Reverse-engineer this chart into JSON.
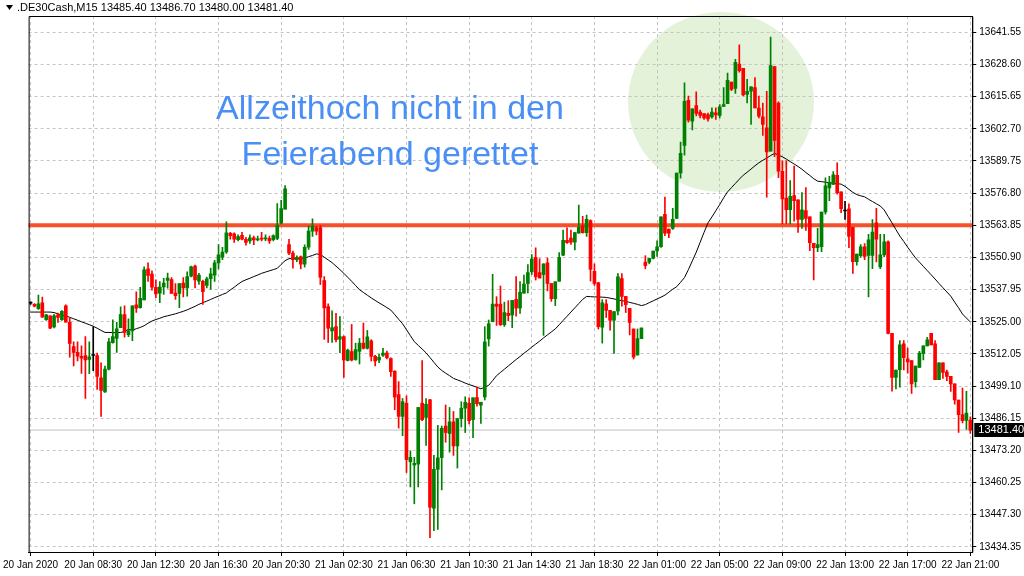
{
  "chart_data": {
    "type": "candlestick",
    "title": ".DE30Cash,M15  13485.40 13486.70 13480.00 13481.40",
    "annotations": [
      "Allzeithoch nicht in den Feierabend gerettet"
    ],
    "categories": [
      "20 Jan 2020",
      null,
      null,
      null,
      null,
      null,
      null,
      null,
      null,
      null,
      null,
      null,
      null,
      null,
      null,
      null,
      "20 Jan 08:30",
      null,
      null,
      null,
      null,
      null,
      null,
      null,
      null,
      null,
      null,
      null,
      null,
      null,
      null,
      null,
      "20 Jan 12:30",
      null,
      null,
      null,
      null,
      null,
      null,
      null,
      null,
      null,
      null,
      null,
      null,
      null,
      null,
      null,
      "20 Jan 16:30",
      null,
      null,
      null,
      null,
      null,
      null,
      null,
      null,
      null,
      null,
      null,
      null,
      null,
      null,
      null,
      "20 Jan 20:30",
      null,
      null,
      null,
      null,
      null,
      null,
      null,
      null,
      null,
      null,
      null,
      null,
      null,
      null,
      null,
      "21 Jan 02:30",
      null,
      null,
      null,
      null,
      null,
      null,
      null,
      null,
      null,
      null,
      null,
      null,
      null,
      null,
      null,
      "21 Jan 06:30",
      null,
      null,
      null,
      null,
      null,
      null,
      null,
      null,
      null,
      null,
      null,
      null,
      null,
      null,
      null,
      "21 Jan 10:30",
      null,
      null,
      null,
      null,
      null,
      null,
      null,
      null,
      null,
      null,
      null,
      null,
      null,
      null,
      null,
      "21 Jan 14:30",
      null,
      null,
      null,
      null,
      null,
      null,
      null,
      null,
      null,
      null,
      null,
      null,
      null,
      null,
      null,
      "21 Jan 18:30",
      null,
      null,
      null,
      null,
      null,
      null,
      null,
      null,
      null,
      null,
      null,
      null,
      null,
      null,
      null,
      "22 Jan 01:00",
      null,
      null,
      null,
      null,
      null,
      null,
      null,
      null,
      null,
      null,
      null,
      null,
      null,
      null,
      null,
      "22 Jan 05:00",
      null,
      null,
      null,
      null,
      null,
      null,
      null,
      null,
      null,
      null,
      null,
      null,
      null,
      null,
      null,
      "22 Jan 09:00",
      null,
      null,
      null,
      null,
      null,
      null,
      null,
      null,
      null,
      null,
      null,
      null,
      null,
      null,
      null,
      "22 Jan 13:00",
      null,
      null,
      null,
      null,
      null,
      null,
      null,
      null,
      null,
      null,
      null,
      null,
      null,
      null,
      null,
      "22 Jan 17:00",
      null,
      null,
      null,
      null,
      null,
      null,
      null,
      null,
      null,
      null,
      null,
      null,
      null,
      null,
      null,
      "22 Jan 21:00"
    ],
    "ohlc": [
      [
        13532.5,
        13533,
        13532,
        13532.5
      ],
      [
        13532,
        13532.3,
        13531,
        13531.3
      ],
      [
        13530.3,
        13535.7,
        13530,
        13532.2
      ],
      [
        13532.6,
        13534.9,
        13526.8,
        13526.8
      ],
      [
        13525.8,
        13528,
        13525.5,
        13527.8
      ],
      [
        13527.4,
        13527.4,
        13522.2,
        13522.4
      ],
      [
        13522.9,
        13528,
        13522.5,
        13527.4
      ],
      [
        13527.8,
        13528.5,
        13524.7,
        13526.7
      ],
      [
        13525.8,
        13529.5,
        13525.5,
        13529.2
      ],
      [
        13531.4,
        13531.8,
        13524.8,
        13524.8
      ],
      [
        13524.8,
        13526.5,
        13510.7,
        13516.3
      ],
      [
        13515,
        13516.9,
        13507.2,
        13512.7
      ],
      [
        13512.7,
        13516.9,
        13509.2,
        13511.1
      ],
      [
        13511.1,
        13515.3,
        13504.2,
        13510.3
      ],
      [
        13511.4,
        13519,
        13494.1,
        13509.6
      ],
      [
        13509.8,
        13516.9,
        13504.1,
        13510.9
      ],
      [
        13511.4,
        13523,
        13505.3,
        13511.4
      ],
      [
        13511.4,
        13512.4,
        13497.8,
        13503
      ],
      [
        13502.4,
        13508.5,
        13486.9,
        13497.4
      ],
      [
        13496.7,
        13507.2,
        13496.5,
        13505.9
      ],
      [
        13505.9,
        13518.3,
        13505.6,
        13516.9
      ],
      [
        13516.6,
        13525.8,
        13516.4,
        13519
      ],
      [
        13518.3,
        13524.8,
        13512.7,
        13522.2
      ],
      [
        13522.6,
        13531,
        13522.6,
        13527.9
      ],
      [
        13527.9,
        13531.4,
        13518.8,
        13520.7
      ],
      [
        13519.8,
        13526.2,
        13519,
        13521.3
      ],
      [
        13521.3,
        13531.4,
        13517.4,
        13531.4
      ],
      [
        13531.8,
        13537,
        13528.8,
        13530.5
      ],
      [
        13530.7,
        13538.9,
        13530.5,
        13534.4
      ],
      [
        13533.8,
        13547.1,
        13533.8,
        13545.9
      ],
      [
        13546.3,
        13548.7,
        13541.2,
        13543.7
      ],
      [
        13544.2,
        13545.5,
        13537.7,
        13538.9
      ],
      [
        13538.9,
        13541.9,
        13534.7,
        13536.2
      ],
      [
        13536.5,
        13541.2,
        13532.7,
        13539
      ],
      [
        13539,
        13542.5,
        13536,
        13540.6
      ],
      [
        13541.6,
        13544.6,
        13538.5,
        13542.6
      ],
      [
        13542,
        13542.8,
        13536.4,
        13536.4
      ],
      [
        13536.5,
        13540.4,
        13534,
        13535.5
      ],
      [
        13536.4,
        13540.4,
        13530.7,
        13540.4
      ],
      [
        13540.6,
        13542.8,
        13535,
        13538.6
      ],
      [
        13538.6,
        13545.1,
        13535.3,
        13543.2
      ],
      [
        13543.4,
        13547.4,
        13543.1,
        13547.1
      ],
      [
        13547.4,
        13547.8,
        13538.6,
        13541.8
      ],
      [
        13541.3,
        13544.5,
        13540,
        13543.8
      ],
      [
        13541.3,
        13541.8,
        13532,
        13537.1
      ],
      [
        13539.6,
        13543,
        13538.6,
        13542.3
      ],
      [
        13542.3,
        13546.6,
        13538,
        13544.3
      ],
      [
        13543.8,
        13549.7,
        13541.2,
        13548.7
      ],
      [
        13548.7,
        13556.1,
        13546.3,
        13551.9
      ],
      [
        13551,
        13555,
        13550,
        13553.1
      ],
      [
        13553.1,
        13565.2,
        13552.5,
        13560.8
      ],
      [
        13560.6,
        13561,
        13558.2,
        13559.7
      ],
      [
        13560.4,
        13560.8,
        13556.9,
        13558.2
      ],
      [
        13558,
        13560,
        13557.5,
        13559.3
      ],
      [
        13559.8,
        13561,
        13557.9,
        13558.2
      ],
      [
        13558.2,
        13559,
        13555.8,
        13556.9
      ],
      [
        13557.5,
        13560,
        13556.5,
        13558.8
      ],
      [
        13558.8,
        13559.5,
        13556,
        13557.9
      ],
      [
        13557.9,
        13559.5,
        13557.5,
        13558.4
      ],
      [
        13558.7,
        13561,
        13557.5,
        13558.2
      ],
      [
        13558.4,
        13560,
        13557.6,
        13558.6
      ],
      [
        13558.6,
        13559.5,
        13556.5,
        13557.5
      ],
      [
        13558,
        13560,
        13557.5,
        13559.7
      ],
      [
        13558.6,
        13572.6,
        13558,
        13563.9
      ],
      [
        13564.7,
        13573.9,
        13564.4,
        13570.6
      ],
      [
        13570.3,
        13579.8,
        13570.3,
        13578.5
      ],
      [
        13556.1,
        13558.2,
        13552,
        13552.6
      ],
      [
        13552.6,
        13553.5,
        13546.6,
        13550
      ],
      [
        13550,
        13551.5,
        13549.2,
        13550.9
      ],
      [
        13551.2,
        13551.5,
        13546.3,
        13548.2
      ],
      [
        13548.2,
        13556,
        13547,
        13555
      ],
      [
        13555,
        13563.5,
        13554.1,
        13561.5
      ],
      [
        13561.5,
        13566.4,
        13559.4,
        13563.5
      ],
      [
        13562.9,
        13563.5,
        13560,
        13561.5
      ],
      [
        13562.9,
        13563.8,
        13540,
        13542.9
      ],
      [
        13541.6,
        13543.2,
        13517.9,
        13530.6
      ],
      [
        13531.1,
        13532.2,
        13516.7,
        13522.4
      ],
      [
        13521.3,
        13529.4,
        13516.7,
        13522.6
      ],
      [
        13523,
        13528.4,
        13516.9,
        13517.8
      ],
      [
        13518,
        13527.1,
        13512.6,
        13519
      ],
      [
        13519,
        13519.3,
        13502.6,
        13509.6
      ],
      [
        13509.4,
        13514,
        13509.2,
        13513.6
      ],
      [
        13513,
        13523.9,
        13509.2,
        13509.6
      ],
      [
        13509.8,
        13516.4,
        13509.5,
        13513.8
      ],
      [
        13513.1,
        13518.3,
        13508,
        13516.4
      ],
      [
        13516.4,
        13524.5,
        13514,
        13514.3
      ],
      [
        13514.3,
        13521.5,
        13514,
        13518.9
      ],
      [
        13517.3,
        13517.8,
        13509.2,
        13511.1
      ],
      [
        13511.1,
        13511.5,
        13507.2,
        13509.2
      ],
      [
        13509.6,
        13512,
        13508.5,
        13510.7
      ],
      [
        13511.5,
        13514.3,
        13511,
        13512.4
      ],
      [
        13512.4,
        13513.2,
        13510,
        13510.5
      ],
      [
        13510.2,
        13510.5,
        13503,
        13504.9
      ],
      [
        13505.1,
        13505.3,
        13489.6,
        13494.7
      ],
      [
        13495.7,
        13500.9,
        13482.2,
        13486.9
      ],
      [
        13486.9,
        13494.1,
        13479.1,
        13492.8
      ],
      [
        13492.2,
        13495.2,
        13464.3,
        13469.5
      ],
      [
        13468.6,
        13473,
        13458.5,
        13470.4
      ],
      [
        13467.3,
        13470.4,
        13451.7,
        13468
      ],
      [
        13467.7,
        13490.5,
        13458.5,
        13490.5
      ],
      [
        13492.2,
        13509.4,
        13485.2,
        13485.6
      ],
      [
        13486.5,
        13494.1,
        13475.2,
        13491.8
      ],
      [
        13493.6,
        13493.8,
        13438.1,
        13450.3
      ],
      [
        13449.9,
        13471.2,
        13440.9,
        13465.6
      ],
      [
        13465.6,
        13483.3,
        13441.4,
        13470.2
      ],
      [
        13470.3,
        13483,
        13457.3,
        13482.1
      ],
      [
        13483,
        13491.5,
        13476.5,
        13480.4
      ],
      [
        13480,
        13490.5,
        13472.5,
        13484.7
      ],
      [
        13484.7,
        13488.9,
        13471.2,
        13475
      ],
      [
        13475,
        13486,
        13466.1,
        13486
      ],
      [
        13486,
        13492.8,
        13482.6,
        13490.2
      ],
      [
        13490.2,
        13494.8,
        13480.4,
        13492.6
      ],
      [
        13492.2,
        13494.4,
        13483.9,
        13485.2
      ],
      [
        13485.6,
        13494.4,
        13478.3,
        13494.4
      ],
      [
        13494.5,
        13498.8,
        13491,
        13492
      ],
      [
        13491.4,
        13492.6,
        13484.1,
        13492.6
      ],
      [
        13494.7,
        13523,
        13493.5,
        13516.9
      ],
      [
        13518.1,
        13525.7,
        13515.2,
        13524.2
      ],
      [
        13525,
        13544.1,
        13525,
        13532.1
      ],
      [
        13532.1,
        13535.1,
        13523.5,
        13531.2
      ],
      [
        13532.1,
        13539.4,
        13523.5,
        13523.8
      ],
      [
        13523.8,
        13532.9,
        13523.1,
        13528.7
      ],
      [
        13528.4,
        13533.5,
        13525.4,
        13527.5
      ],
      [
        13527.7,
        13533.6,
        13522.6,
        13533.6
      ],
      [
        13534,
        13543.2,
        13527.2,
        13530.5
      ],
      [
        13530.5,
        13541.2,
        13528.4,
        13536.9
      ],
      [
        13536.5,
        13543.8,
        13536.5,
        13540.2
      ],
      [
        13540.4,
        13548,
        13536.6,
        13544.8
      ],
      [
        13545.1,
        13552,
        13544,
        13550.3
      ],
      [
        13550.9,
        13554.8,
        13541.8,
        13543.1
      ],
      [
        13544.8,
        13550.4,
        13542.6,
        13542.6
      ],
      [
        13544,
        13548.3,
        13519.5,
        13548.3
      ],
      [
        13548.7,
        13550.7,
        13537.4,
        13540.4
      ],
      [
        13540.4,
        13540.4,
        13533.2,
        13534.3
      ],
      [
        13534.3,
        13541.1,
        13531.5,
        13541.1
      ],
      [
        13541.3,
        13552.9,
        13541.3,
        13550.9
      ],
      [
        13551.8,
        13561.9,
        13551.6,
        13557.8
      ],
      [
        13557.8,
        13562.8,
        13556.5,
        13556.8
      ],
      [
        13558.7,
        13561.9,
        13556.1,
        13557
      ],
      [
        13557,
        13560.9,
        13553.9,
        13560.9
      ],
      [
        13560.7,
        13572,
        13560.7,
        13563
      ],
      [
        13563.6,
        13567.4,
        13560.7,
        13560.9
      ],
      [
        13560.9,
        13567.9,
        13559.4,
        13566.2
      ],
      [
        13565.7,
        13566,
        13541.4,
        13546.1
      ],
      [
        13545.3,
        13548.3,
        13539.6,
        13540.4
      ],
      [
        13540.7,
        13540.9,
        13522.1,
        13523
      ],
      [
        13522.8,
        13533.9,
        13516.4,
        13532.6
      ],
      [
        13532.2,
        13533.9,
        13526.7,
        13529.6
      ],
      [
        13529.6,
        13529.6,
        13521.6,
        13525.6
      ],
      [
        13525.6,
        13529.1,
        13512.3,
        13529.1
      ],
      [
        13529.3,
        13544.4,
        13527.8,
        13543.1
      ],
      [
        13542.4,
        13544.4,
        13531.3,
        13535.2
      ],
      [
        13535.2,
        13535.2,
        13528.7,
        13531.9
      ],
      [
        13530.4,
        13530.4,
        13519.7,
        13524.7
      ],
      [
        13522.1,
        13522.1,
        13510,
        13510.8
      ],
      [
        13511.6,
        13522.1,
        13511.6,
        13518.2
      ],
      [
        13518.2,
        13522.5,
        13518.2,
        13522.5
      ],
      [
        13549,
        13551.6,
        13546.3,
        13547.6
      ],
      [
        13549,
        13550.5,
        13548.3,
        13550.5
      ],
      [
        13550.5,
        13553.5,
        13550.3,
        13553.5
      ],
      [
        13553.5,
        13557.6,
        13551.3,
        13555.2
      ],
      [
        13555.2,
        13567.2,
        13554.9,
        13567.2
      ],
      [
        13568.3,
        13575.2,
        13559.7,
        13560.7
      ],
      [
        13562.3,
        13562.3,
        13558.9,
        13560.7
      ],
      [
        13562.6,
        13570.7,
        13562.2,
        13566.2
      ],
      [
        13566.6,
        13584.9,
        13566.6,
        13584.9
      ],
      [
        13584.9,
        13597.3,
        13582.8,
        13592.8
      ],
      [
        13596,
        13621.2,
        13592.1,
        13613.7
      ],
      [
        13614.1,
        13615.9,
        13605.4,
        13606.2
      ],
      [
        13605.8,
        13610.7,
        13602.2,
        13610.7
      ],
      [
        13612,
        13617.6,
        13607.9,
        13608.9
      ],
      [
        13609.4,
        13610.2,
        13607.1,
        13608.1
      ],
      [
        13608.8,
        13608.8,
        13606.5,
        13607.1
      ],
      [
        13608.4,
        13609,
        13605.8,
        13606.7
      ],
      [
        13607.5,
        13611.1,
        13607,
        13609.4
      ],
      [
        13609.1,
        13611.1,
        13606.5,
        13608.3
      ],
      [
        13608.1,
        13612.4,
        13607.1,
        13611.5
      ],
      [
        13611.7,
        13619.3,
        13611.7,
        13612.4
      ],
      [
        13612.8,
        13625.1,
        13612.8,
        13622.2
      ],
      [
        13621.5,
        13621.5,
        13618,
        13618.5
      ],
      [
        13618.9,
        13630.7,
        13616.9,
        13629.4
      ],
      [
        13628.7,
        13636.5,
        13625.5,
        13626.1
      ],
      [
        13627,
        13627,
        13615.9,
        13616.3
      ],
      [
        13616.5,
        13622.6,
        13613.1,
        13617.8
      ],
      [
        13617.8,
        13619.6,
        13604.4,
        13619.6
      ],
      [
        13619.3,
        13623.3,
        13611.1,
        13611.1
      ],
      [
        13611,
        13615.9,
        13607.1,
        13607.8
      ],
      [
        13607.5,
        13613,
        13600,
        13604.4
      ],
      [
        13603.1,
        13617.8,
        13575.2,
        13593.4
      ],
      [
        13593.7,
        13639.6,
        13593.7,
        13628.1
      ],
      [
        13627.7,
        13627.7,
        13591.5,
        13598
      ],
      [
        13613,
        13613.5,
        13583,
        13585.6
      ],
      [
        13585.6,
        13589.8,
        13564.4,
        13574.5
      ],
      [
        13574.8,
        13589.8,
        13564.4,
        13570.1
      ],
      [
        13570.1,
        13581.8,
        13564.4,
        13575.5
      ],
      [
        13575.8,
        13587.7,
        13565.5,
        13573.7
      ],
      [
        13574.1,
        13574.1,
        13561,
        13566.2
      ],
      [
        13566.2,
        13577,
        13562.6,
        13570.1
      ],
      [
        13569.8,
        13579,
        13561.8,
        13566.6
      ],
      [
        13567.2,
        13567.2,
        13553.6,
        13556.8
      ],
      [
        13556.6,
        13556.6,
        13541.8,
        13554.8
      ],
      [
        13554.8,
        13562.6,
        13553.2,
        13556.1
      ],
      [
        13555.2,
        13569.2,
        13553.2,
        13569.2
      ],
      [
        13569.2,
        13582.9,
        13568.3,
        13579.7
      ],
      [
        13578.9,
        13583.5,
        13573.7,
        13581
      ],
      [
        13580.3,
        13585.5,
        13580.3,
        13584.2
      ],
      [
        13584,
        13589,
        13576.4,
        13577
      ],
      [
        13577.3,
        13577.3,
        13568.9,
        13570.5
      ],
      [
        13569.6,
        13573.5,
        13566.2,
        13569.6
      ],
      [
        13570.5,
        13572.5,
        13554.8,
        13559.4
      ],
      [
        13563,
        13563,
        13544.5,
        13549.2
      ],
      [
        13549.2,
        13552.2,
        13547.8,
        13552.2
      ],
      [
        13551.6,
        13556.1,
        13550.9,
        13555.2
      ],
      [
        13555.2,
        13556.5,
        13550,
        13551.3
      ],
      [
        13551.7,
        13560.2,
        13535,
        13558
      ],
      [
        13551.7,
        13566.1,
        13546.4,
        13561.1
      ],
      [
        13564.8,
        13570.7,
        13549.1,
        13558.2
      ],
      [
        13547.1,
        13560.2,
        13546.4,
        13551.9
      ],
      [
        13551.9,
        13560.2,
        13551.2,
        13557.2
      ],
      [
        13557.2,
        13557.6,
        13520.1,
        13520.3
      ],
      [
        13520.3,
        13520.3,
        13497.1,
        13502.6
      ],
      [
        13502.6,
        13505.5,
        13498,
        13505.5
      ],
      [
        13505.7,
        13517.4,
        13498.7,
        13515.7
      ],
      [
        13516.1,
        13517.4,
        13505.6,
        13510.5
      ],
      [
        13510.1,
        13514.4,
        13504.3,
        13508.8
      ],
      [
        13509.4,
        13509.4,
        13496.1,
        13500
      ],
      [
        13500.9,
        13507.2,
        13498.7,
        13507.2
      ],
      [
        13506.6,
        13513.1,
        13506.6,
        13512.4
      ],
      [
        13512.2,
        13515.3,
        13509.6,
        13515.3
      ],
      [
        13515.3,
        13518.7,
        13515.3,
        13517.7
      ],
      [
        13520.3,
        13520.3,
        13515.7,
        13515.7
      ],
      [
        13516.1,
        13517.4,
        13501.7,
        13501.7
      ],
      [
        13501.7,
        13508.5,
        13501.7,
        13508.5
      ],
      [
        13508.5,
        13508.5,
        13502.2,
        13504.6
      ],
      [
        13504.8,
        13505.5,
        13501.3,
        13503
      ],
      [
        13503,
        13503,
        13497,
        13500
      ],
      [
        13500,
        13500,
        13491.8,
        13493.5
      ],
      [
        13493.5,
        13493.5,
        13480.4,
        13487.6
      ],
      [
        13487.6,
        13498.3,
        13484.3,
        13485.2
      ],
      [
        13485.3,
        13497,
        13481.7,
        13488.2
      ],
      [
        13485.4,
        13486.7,
        13480,
        13481.4
      ]
    ],
    "colors": [
      "#000000",
      "#ff0000",
      "#008000",
      "#ff0000",
      "#008000",
      "#ff0000",
      "#008000",
      "#ff0000",
      "#008000",
      "#ff0000",
      "#ff0000",
      "#ff0000",
      "#ff0000",
      "#ff0000",
      "#ff0000",
      "#008000",
      "#000000",
      "#ff0000",
      "#ff0000",
      "#008000",
      "#008000",
      "#008000",
      "#008000",
      "#008000",
      "#ff0000",
      "#008000",
      "#008000",
      "#ff0000",
      "#008000",
      "#008000",
      "#ff0000",
      "#ff0000",
      "#ff0000",
      "#008000",
      "#008000",
      "#008000",
      "#ff0000",
      "#ff0000",
      "#008000",
      "#ff0000",
      "#008000",
      "#008000",
      "#ff0000",
      "#008000",
      "#ff0000",
      "#008000",
      "#008000",
      "#008000",
      "#008000",
      "#008000",
      "#008000",
      "#ff0000",
      "#ff0000",
      "#008000",
      "#ff0000",
      "#ff0000",
      "#008000",
      "#ff0000",
      "#008000",
      "#ff0000",
      "#008000",
      "#ff0000",
      "#008000",
      "#008000",
      "#008000",
      "#008000",
      "#ff0000",
      "#ff0000",
      "#008000",
      "#ff0000",
      "#008000",
      "#008000",
      "#008000",
      "#ff0000",
      "#ff0000",
      "#ff0000",
      "#ff0000",
      "#008000",
      "#ff0000",
      "#008000",
      "#ff0000",
      "#008000",
      "#ff0000",
      "#008000",
      "#008000",
      "#ff0000",
      "#008000",
      "#ff0000",
      "#ff0000",
      "#008000",
      "#008000",
      "#ff0000",
      "#ff0000",
      "#ff0000",
      "#ff0000",
      "#008000",
      "#ff0000",
      "#008000",
      "#008000",
      "#008000",
      "#ff0000",
      "#008000",
      "#ff0000",
      "#008000",
      "#008000",
      "#008000",
      "#ff0000",
      "#008000",
      "#ff0000",
      "#008000",
      "#008000",
      "#008000",
      "#ff0000",
      "#008000",
      "#ff0000",
      "#008000",
      "#008000",
      "#008000",
      "#008000",
      "#ff0000",
      "#ff0000",
      "#008000",
      "#ff0000",
      "#008000",
      "#ff0000",
      "#008000",
      "#008000",
      "#008000",
      "#008000",
      "#ff0000",
      "#ff0000",
      "#008000",
      "#ff0000",
      "#ff0000",
      "#008000",
      "#008000",
      "#008000",
      "#ff0000",
      "#ff0000",
      "#008000",
      "#008000",
      "#ff0000",
      "#008000",
      "#ff0000",
      "#ff0000",
      "#ff0000",
      "#008000",
      "#ff0000",
      "#ff0000",
      "#008000",
      "#008000",
      "#ff0000",
      "#ff0000",
      "#ff0000",
      "#ff0000",
      "#008000",
      "#008000",
      "#ff0000",
      "#008000",
      "#008000",
      "#008000",
      "#008000",
      "#ff0000",
      "#ff0000",
      "#008000",
      "#008000",
      "#008000",
      "#008000",
      "#ff0000",
      "#008000",
      "#ff0000",
      "#ff0000",
      "#ff0000",
      "#ff0000",
      "#008000",
      "#ff0000",
      "#008000",
      "#008000",
      "#008000",
      "#ff0000",
      "#008000",
      "#ff0000",
      "#ff0000",
      "#008000",
      "#008000",
      "#ff0000",
      "#ff0000",
      "#ff0000",
      "#ff0000",
      "#008000",
      "#ff0000",
      "#ff0000",
      "#ff0000",
      "#ff0000",
      "#008000",
      "#ff0000",
      "#ff0000",
      "#008000",
      "#ff0000",
      "#ff0000",
      "#ff0000",
      "#008000",
      "#008000",
      "#008000",
      "#008000",
      "#008000",
      "#ff0000",
      "#ff0000",
      "#000000",
      "#ff0000",
      "#ff0000",
      "#008000",
      "#008000",
      "#ff0000",
      "#008000",
      "#008000",
      "#ff0000",
      "#008000",
      "#008000",
      "#ff0000",
      "#ff0000",
      "#008000",
      "#008000",
      "#ff0000",
      "#ff0000",
      "#ff0000",
      "#008000",
      "#008000",
      "#008000",
      "#008000",
      "#ff0000",
      "#ff0000",
      "#008000",
      "#ff0000",
      "#ff0000",
      "#ff0000",
      "#ff0000",
      "#ff0000",
      "#ff0000",
      "#008000",
      "#ff0000"
    ],
    "series": [
      {
        "type": "line",
        "color": "#000000",
        "values": [
          13528.9,
          13528.9,
          13528.9,
          13528.9,
          13528.9,
          13528.9,
          13528.7,
          13528.2,
          13527.7,
          13527.3,
          13526.8,
          13526.2,
          13525.6,
          13525.0,
          13524.4,
          13523.8,
          13523.2,
          13522.4,
          13521.5,
          13520.7,
          13520.7,
          13520.6,
          13520.6,
          13520.7,
          13521.0,
          13522.0,
          13521.6,
          13522.2,
          13522.7,
          13523.4,
          13524.4,
          13525.3,
          13525.9,
          13526.4,
          13527.0,
          13527.4,
          13527.8,
          13528.2,
          13528.7,
          13529.2,
          13529.8,
          13530.5,
          13531.2,
          13532.0,
          13532.7,
          13533.3,
          13534.0,
          13534.7,
          13535.3,
          13536.0,
          13536.6,
          13537.8,
          13538.9,
          13540.1,
          13541.2,
          13541.9,
          13542.5,
          13543.2,
          13543.8,
          13544.5,
          13545.0,
          13545.5,
          13546.0,
          13546.5,
          13548.1,
          13549.6,
          13550.4,
          13550.5,
          13550.5,
          13550.6,
          13550.6,
          13551.2,
          13551.7,
          13552.3,
          13552.1,
          13551.0,
          13549.9,
          13548.8,
          13547.4,
          13546.0,
          13544.5,
          13542.9,
          13541.3,
          13539.6,
          13537.9,
          13536.8,
          13535.7,
          13534.6,
          13533.6,
          13532.6,
          13531.7,
          13530.7,
          13529.7,
          13527.9,
          13526.0,
          13524.2,
          13521.8,
          13519.4,
          13517.0,
          13515.5,
          13514.0,
          13512.5,
          13510.6,
          13508.7,
          13506.8,
          13505.4,
          13504.3,
          13503.3,
          13502.2,
          13501.6,
          13501.0,
          13500.3,
          13499.7,
          13499.2,
          13498.6,
          13498.0,
          13498.7,
          13499.4,
          13501.3,
          13503.3,
          13504.6,
          13505.9,
          13507.2,
          13508.5,
          13509.8,
          13511.0,
          13512.3,
          13513.5,
          13514.8,
          13516.0,
          13517.2,
          13518.5,
          13519.7,
          13520.9,
          13522.1,
          13523.8,
          13525.5,
          13527.2,
          13528.9,
          13530.6,
          13532.3,
          13534.0,
          13535.2,
          13535.1,
          13535.0,
          13535.0,
          13534.9,
          13534.8,
          13534.5,
          13534.2,
          13533.8,
          13533.5,
          13533.2,
          13532.8,
          13532.4,
          13532.0,
          13531.5,
          13531.9,
          13532.7,
          13533.4,
          13534.2,
          13534.9,
          13535.7,
          13536.9,
          13538.1,
          13539.1,
          13540.9,
          13542.8,
          13546.0,
          13549.5,
          13553.0,
          13557.0,
          13561.0,
          13564.8,
          13567.2,
          13569.7,
          13572.2,
          13574.9,
          13577.3,
          13579.0,
          13580.7,
          13582.4,
          13584.0,
          13585.2,
          13586.5,
          13587.8,
          13589.0,
          13590.0,
          13590.9,
          13591.9,
          13592.8,
          13592.1,
          13591.4,
          13590.5,
          13589.5,
          13588.5,
          13587.5,
          13586.4,
          13585.1,
          13583.9,
          13582.6,
          13581.6,
          13581.4,
          13581.2,
          13581.0,
          13580.8,
          13580.6,
          13580.4,
          13579.5,
          13578.3,
          13577.1,
          13576.2,
          13575.7,
          13575.3,
          13574.3,
          13573.4,
          13572.5,
          13571.6,
          13570.0,
          13567.4,
          13564.8,
          13562.1,
          13559.5,
          13557.3,
          13555.0,
          13552.8,
          13550.7,
          13549.0,
          13547.3,
          13545.6,
          13543.9,
          13542.2,
          13540.4,
          13538.7,
          13537.0,
          13535.3,
          13532.9,
          13530.6,
          13528.1,
          13526.5,
          13524.9
        ]
      }
    ],
    "ylim": [
      13432.3,
      13648.1
    ],
    "yticks": [
      13641.55,
      {
        "value": 13628.6,
        "label": "13628.60"
      },
      13615.65,
      {
        "value": 13602.7,
        "label": "13602.70"
      },
      13589.75,
      {
        "value": 13576.8,
        "label": "13576.80"
      },
      13563.85,
      {
        "value": 13550.9,
        "label": "13550.90"
      },
      13537.95,
      {
        "value": 13525,
        "label": "13525.00"
      },
      13512.05,
      {
        "value": 13499.1,
        "label": "13499.10"
      },
      13486.15,
      {
        "value": 13473.2,
        "label": "13473.20"
      },
      13460.25,
      {
        "value": 13447.3,
        "label": "13447.30"
      },
      13434.35
    ],
    "ref_lines": [
      {
        "axis": "y",
        "value": 13563.85,
        "color": "#f4502a"
      },
      {
        "axis": "y",
        "value": 13481.4,
        "label": "13481.40",
        "color": "#c0c0c0"
      }
    ],
    "grid": true,
    "legend": false,
    "marker": "none"
  }
}
